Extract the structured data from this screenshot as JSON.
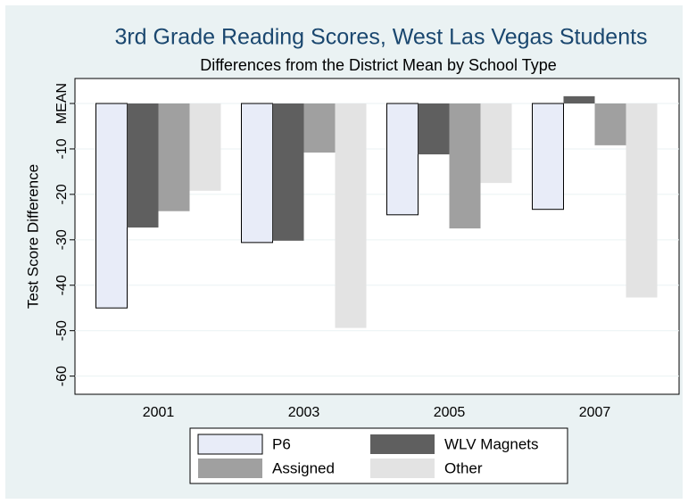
{
  "chart_data": {
    "type": "bar",
    "title": "3rd Grade Reading Scores, West Las Vegas Students",
    "subtitle": "Differences from the District Mean by School Type",
    "y_label": "Test Score Difference",
    "categories": [
      "2001",
      "2003",
      "2005",
      "2007"
    ],
    "series": [
      {
        "name": "P6",
        "color": "#e8ecf8",
        "values": [
          -45,
          -30.6,
          -24.5,
          -23.3
        ]
      },
      {
        "name": "WLV Magnets",
        "color": "#5f5f5f",
        "values": [
          -27.3,
          -30.2,
          -11.2,
          1.6
        ]
      },
      {
        "name": "Assigned",
        "color": "#a0a0a0",
        "values": [
          -23.7,
          -10.8,
          -27.5,
          -9.2
        ]
      },
      {
        "name": "Other",
        "color": "#e3e3e3",
        "values": [
          -19.2,
          -49.4,
          -17.5,
          -42.7
        ]
      }
    ],
    "ylim": [
      -64,
      5.5
    ],
    "yticks": [
      {
        "value": 0,
        "label": "MEAN"
      },
      -10,
      -20,
      -30,
      -40,
      -50,
      -60
    ],
    "grid": true,
    "legend": "bottom"
  }
}
